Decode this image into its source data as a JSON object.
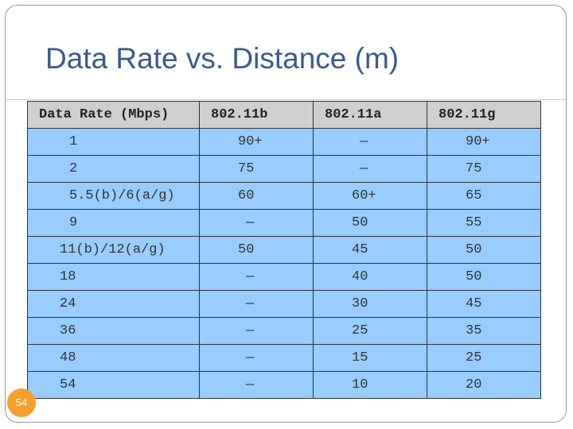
{
  "title": "Data Rate vs. Distance (m)",
  "slide_number": "54",
  "table": {
    "headers": [
      "Data Rate (Mbps)",
      "802.11b",
      "802.11a",
      "802.11g"
    ],
    "rows": [
      [
        "1",
        "90+",
        "—",
        "90+"
      ],
      [
        "2",
        "75",
        "—",
        "75"
      ],
      [
        "5.5(b)/6(a/g)",
        "60",
        "60+",
        "65"
      ],
      [
        "9",
        "—",
        "50",
        "55"
      ],
      [
        "11(b)/12(a/g)",
        "50",
        "45",
        "50"
      ],
      [
        "18",
        "—",
        "40",
        "50"
      ],
      [
        "24",
        "—",
        "30",
        "45"
      ],
      [
        "36",
        "—",
        "25",
        "35"
      ],
      [
        "48",
        "—",
        "15",
        "25"
      ],
      [
        "54",
        "—",
        "10",
        "20"
      ]
    ]
  }
}
